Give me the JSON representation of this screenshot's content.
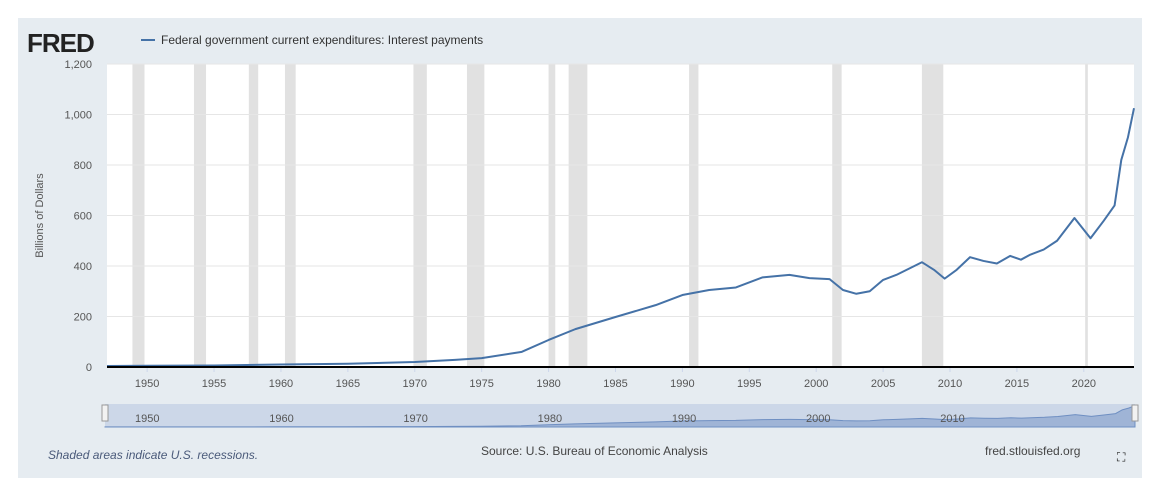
{
  "header": {
    "logo": "FRED",
    "legend_label": "Federal government current expenditures: Interest payments"
  },
  "footer": {
    "recession_note": "Shaded areas indicate U.S. recessions.",
    "source": "Source: U.S. Bureau of Economic Analysis",
    "site": "fred.stlouisfed.org",
    "fullscreen_icon": "fullscreen-icon"
  },
  "colors": {
    "line": "#4572a7",
    "recession": "#e1e1e1",
    "panel": "#e6ecf1"
  },
  "chart_data": {
    "type": "line",
    "title": "",
    "ylabel": "Billions of Dollars",
    "xlabel": "",
    "xlim": [
      1947,
      2023.75
    ],
    "ylim": [
      0,
      1200
    ],
    "grid": true,
    "legend_placement": "top-left",
    "yticks": [
      0,
      200,
      400,
      600,
      800,
      "1,000",
      "1,200"
    ],
    "yticks_values": [
      0,
      200,
      400,
      600,
      800,
      1000,
      1200
    ],
    "xticks": [
      1950,
      1955,
      1960,
      1965,
      1970,
      1975,
      1980,
      1985,
      1990,
      1995,
      2000,
      2005,
      2010,
      2015,
      2020
    ],
    "navigator_ticks": [
      1950,
      1960,
      1970,
      1980,
      1990,
      2000,
      2010
    ],
    "recessions": [
      [
        1948.9,
        1949.8
      ],
      [
        1953.5,
        1954.4
      ],
      [
        1957.6,
        1958.3
      ],
      [
        1960.3,
        1961.1
      ],
      [
        1969.9,
        1970.9
      ],
      [
        1973.9,
        1975.2
      ],
      [
        1980.0,
        1980.5
      ],
      [
        1981.5,
        1982.9
      ],
      [
        1990.5,
        1991.2
      ],
      [
        2001.2,
        2001.9
      ],
      [
        2007.9,
        2009.5
      ],
      [
        2020.1,
        2020.3
      ]
    ],
    "series": [
      {
        "name": "Federal government current expenditures: Interest payments",
        "x": [
          1947,
          1950,
          1955,
          1960,
          1965,
          1970,
          1973,
          1975,
          1978,
          1980,
          1982,
          1985,
          1988,
          1990,
          1992,
          1994,
          1996,
          1998,
          1999.5,
          2001,
          2002,
          2003,
          2004,
          2005,
          2006,
          2007.9,
          2008.8,
          2009.6,
          2010.5,
          2011.5,
          2012.5,
          2013.5,
          2014.5,
          2015.3,
          2016,
          2017,
          2018,
          2019.3,
          2020.5,
          2021.5,
          2022.3,
          2022.8,
          2023.3,
          2023.75
        ],
        "values": [
          4,
          5,
          6,
          10,
          13,
          20,
          28,
          35,
          60,
          107,
          150,
          198,
          245,
          285,
          305,
          315,
          355,
          365,
          352,
          348,
          305,
          290,
          300,
          345,
          365,
          415,
          385,
          350,
          385,
          435,
          420,
          410,
          440,
          425,
          445,
          465,
          500,
          590,
          510,
          580,
          640,
          820,
          910,
          1025
        ]
      }
    ]
  }
}
